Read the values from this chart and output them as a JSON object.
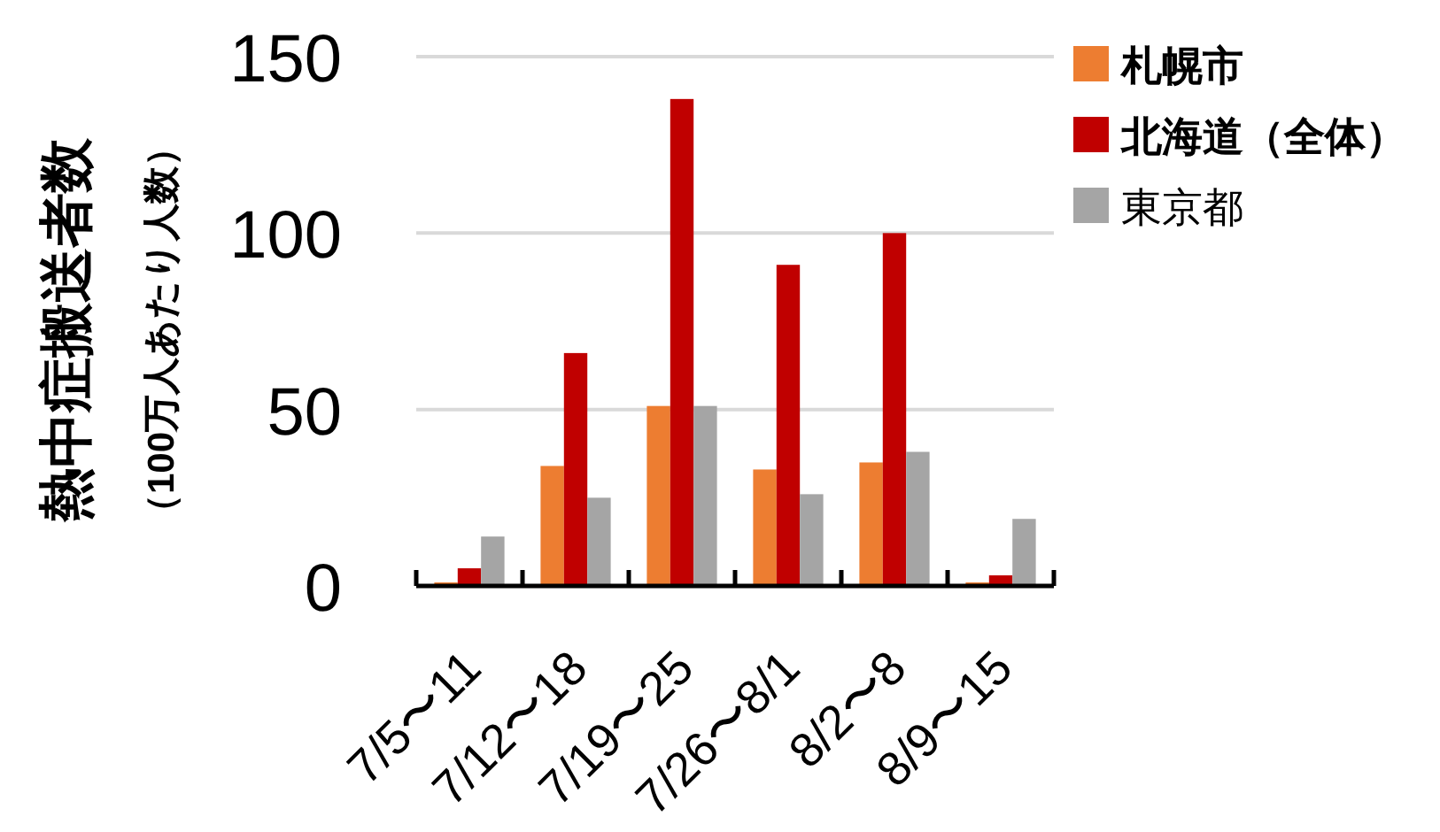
{
  "chart_data": {
    "type": "bar",
    "ylabel": "熱中症搬送者数",
    "subtitle": "（100万人あたり人数）",
    "categories": [
      "7/5〜11",
      "7/12〜18",
      "7/19〜25",
      "7/26〜8/1",
      "8/2〜8",
      "8/9〜15"
    ],
    "series": [
      {
        "name": "札幌市",
        "color": "#ed7d31",
        "values": [
          1,
          34,
          51,
          33,
          35,
          1
        ]
      },
      {
        "name": "北海道（全体）",
        "color": "#c00000",
        "values": [
          5,
          66,
          138,
          91,
          100,
          3
        ]
      },
      {
        "name": "東京都",
        "color": "#a5a5a5",
        "values": [
          14,
          25,
          51,
          26,
          38,
          19
        ]
      }
    ],
    "ylim": [
      0,
      150
    ],
    "yticks": [
      0,
      50,
      100,
      150
    ],
    "grid": "y",
    "legend": "top right"
  }
}
